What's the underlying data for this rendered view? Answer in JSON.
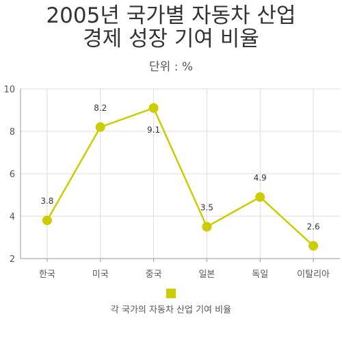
{
  "chart_data": {
    "type": "line",
    "title_lines": [
      "2005년 국가별 자동차 산업",
      "경제 성장 기여 비율"
    ],
    "subtitle": "단위 : %",
    "categories": [
      "한국",
      "미국",
      "중국",
      "일본",
      "독일",
      "이탈리아"
    ],
    "series": [
      {
        "name": "각 국가의 자동차 산업 기여 비율",
        "values": [
          3.8,
          8.2,
          9.1,
          3.5,
          4.9,
          2.6
        ],
        "labels": [
          "3.8",
          "8.2",
          "9.1",
          "3.5",
          "4.9",
          "2.6"
        ],
        "label_position": [
          "above",
          "above",
          "below",
          "above",
          "above",
          "above"
        ]
      }
    ],
    "ylim": [
      2,
      10
    ],
    "yticks": [
      2,
      4,
      6,
      8,
      10
    ],
    "grid": true,
    "legend_position": "bottom",
    "colors": {
      "series": "#cccc00",
      "grid": "#dddddd",
      "axis": "#999999"
    }
  }
}
